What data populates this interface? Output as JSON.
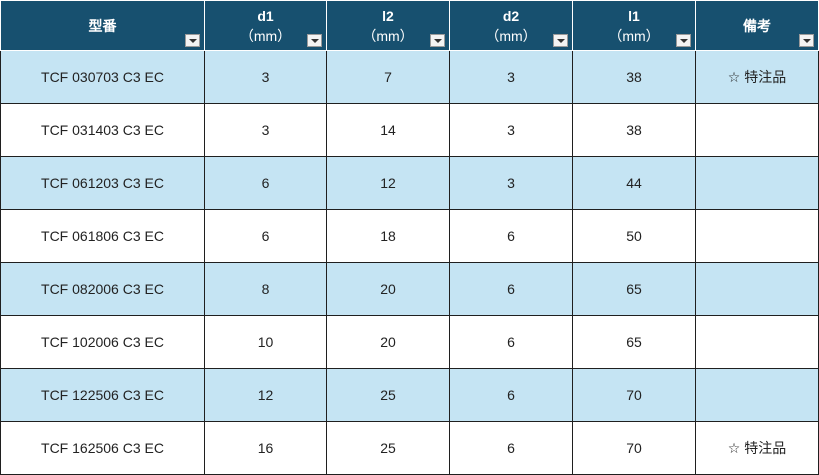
{
  "table": {
    "headers": [
      {
        "label": "型番",
        "unit": ""
      },
      {
        "label": "d1",
        "unit": "（mm）"
      },
      {
        "label": "l2",
        "unit": "（mm）"
      },
      {
        "label": "d2",
        "unit": "（mm）"
      },
      {
        "label": "l1",
        "unit": "（mm）"
      },
      {
        "label": "備考",
        "unit": ""
      }
    ],
    "rows": [
      [
        "TCF 030703 C3 EC",
        "3",
        "7",
        "3",
        "38",
        "☆ 特注品"
      ],
      [
        "TCF 031403 C3 EC",
        "3",
        "14",
        "3",
        "38",
        ""
      ],
      [
        "TCF 061203 C3 EC",
        "6",
        "12",
        "3",
        "44",
        ""
      ],
      [
        "TCF 061806 C3 EC",
        "6",
        "18",
        "6",
        "50",
        ""
      ],
      [
        "TCF 082006 C3 EC",
        "8",
        "20",
        "6",
        "65",
        ""
      ],
      [
        "TCF 102006 C3 EC",
        "10",
        "20",
        "6",
        "65",
        ""
      ],
      [
        "TCF 122506 C3 EC",
        "12",
        "25",
        "6",
        "70",
        ""
      ],
      [
        "TCF 162506 C3 EC",
        "16",
        "25",
        "6",
        "70",
        "☆ 特注品"
      ]
    ]
  },
  "colors": {
    "header_bg": "#17506f",
    "header_text": "#ffffff",
    "row_shaded": "#c5e4f3",
    "row_plain": "#ffffff",
    "grid_line": "#1f1f1f"
  },
  "icons": {
    "filter": "chevron-down-icon"
  }
}
